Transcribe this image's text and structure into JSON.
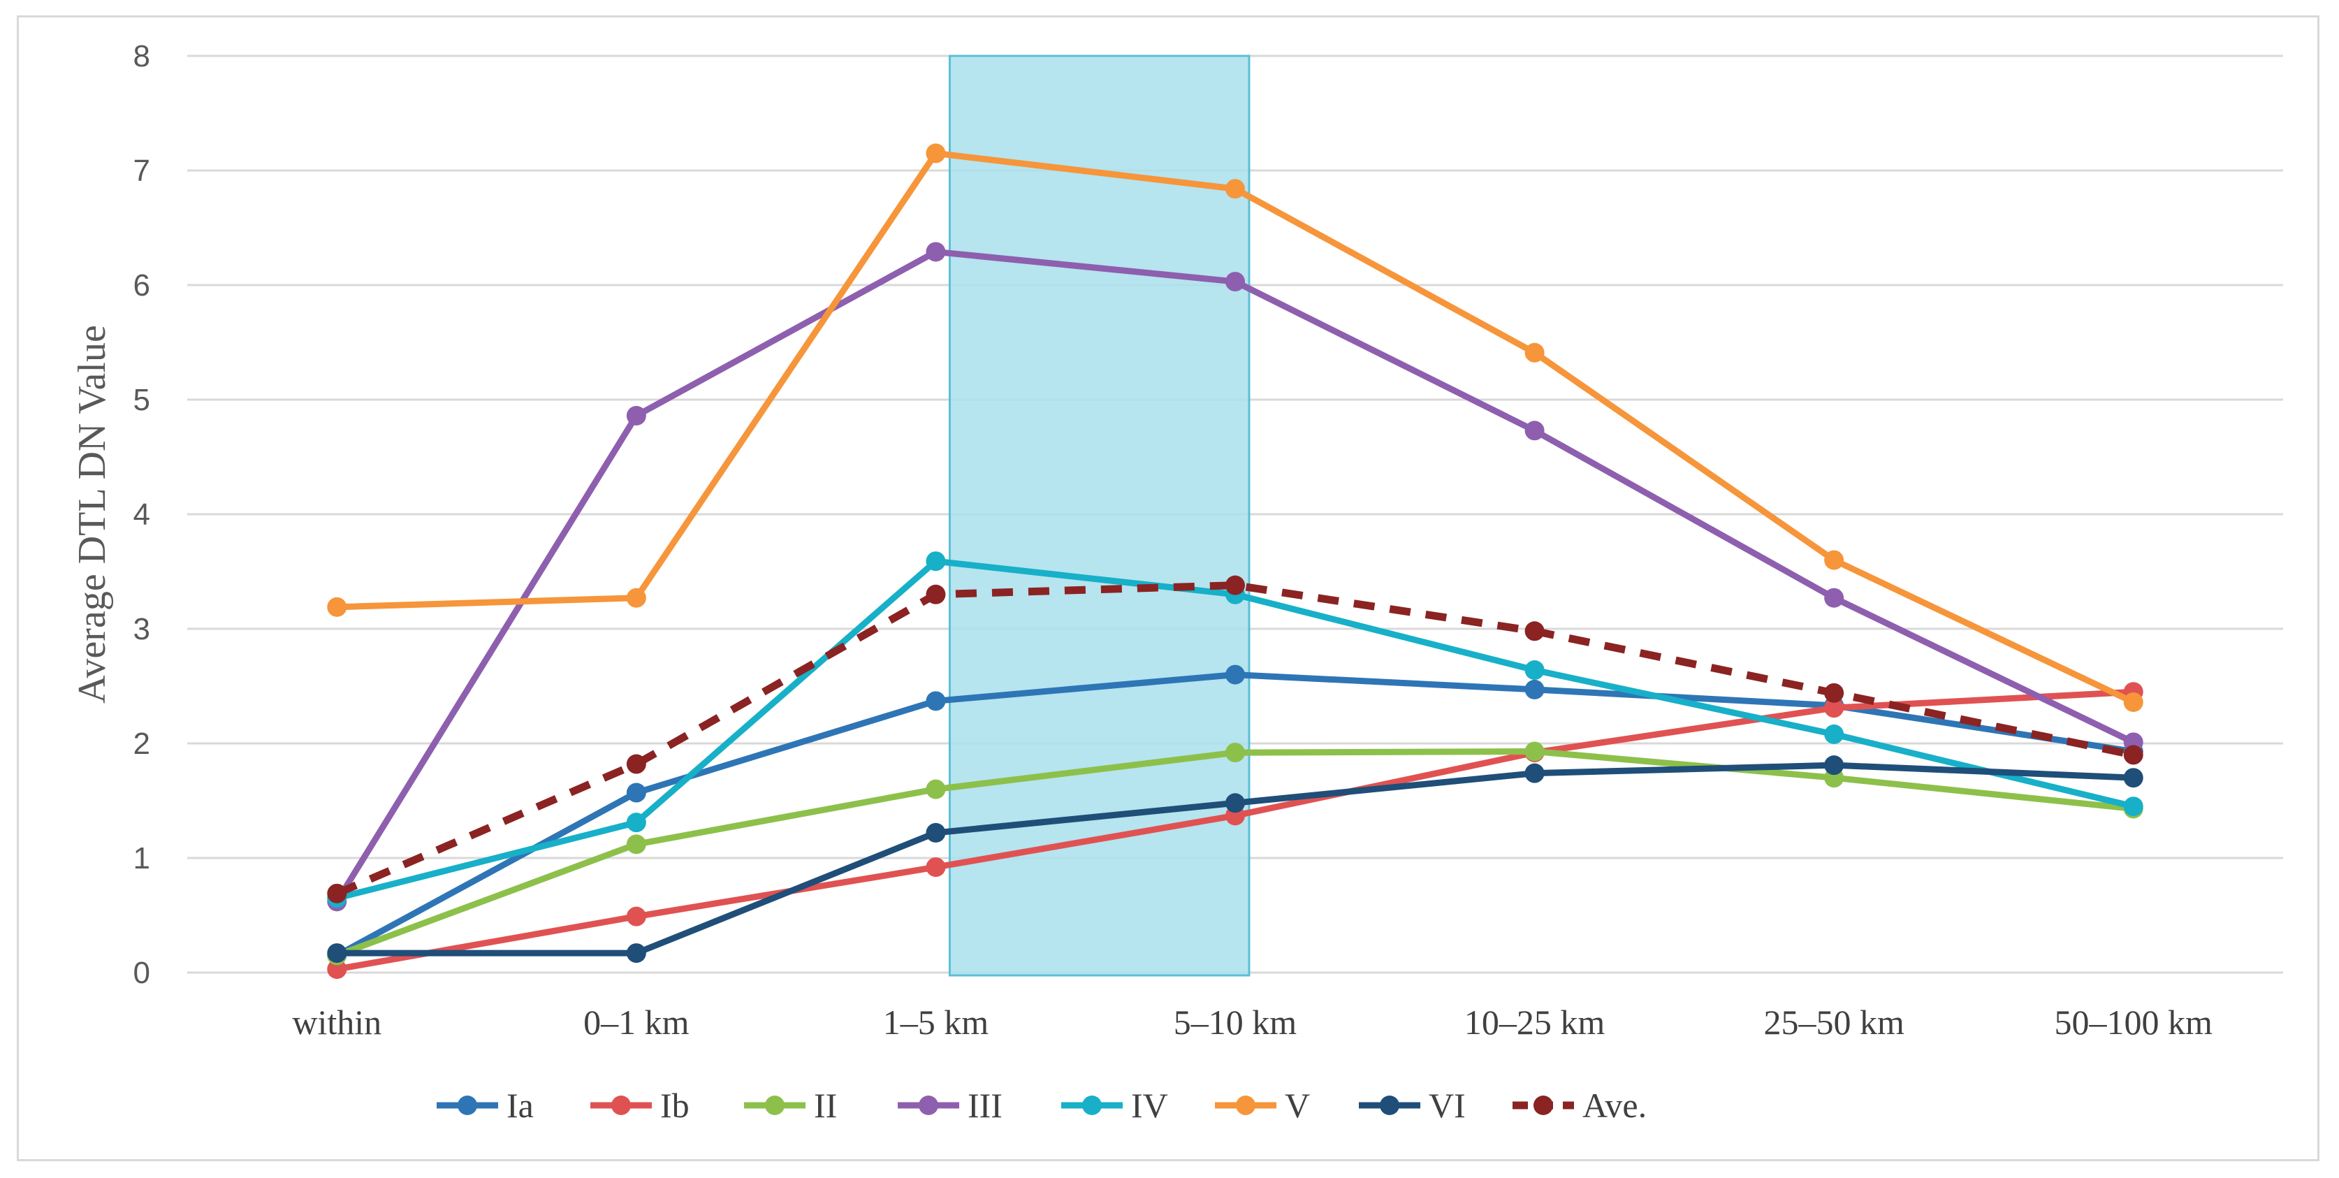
{
  "chart_data": {
    "type": "line",
    "title": "",
    "xlabel": "",
    "ylabel": "Average DTL DN Value",
    "ylim": [
      0,
      8
    ],
    "yticks": [
      0,
      1,
      2,
      3,
      4,
      5,
      6,
      7,
      8
    ],
    "grid": true,
    "legend_position": "bottom",
    "categories": [
      "within",
      "0–1 km",
      "1–5 km",
      "5–10 km",
      "10–25 km",
      "25–50 km",
      "50–100 km"
    ],
    "highlight": {
      "from": "1–5 km",
      "to": "5–10 km",
      "color": "#a9dfec"
    },
    "series": [
      {
        "name": "Ia",
        "color": "#2e75b6",
        "dashed": false,
        "values": [
          0.15,
          1.57,
          2.37,
          2.6,
          2.47,
          2.33,
          1.93
        ]
      },
      {
        "name": "Ib",
        "color": "#e05252",
        "dashed": false,
        "values": [
          0.03,
          0.49,
          0.92,
          1.37,
          1.92,
          2.31,
          2.45
        ]
      },
      {
        "name": "II",
        "color": "#8dc04a",
        "dashed": false,
        "values": [
          0.15,
          1.12,
          1.6,
          1.92,
          1.93,
          1.7,
          1.43
        ]
      },
      {
        "name": "III",
        "color": "#8e5fae",
        "dashed": false,
        "values": [
          0.62,
          4.86,
          6.29,
          6.03,
          4.73,
          3.27,
          2.01
        ]
      },
      {
        "name": "IV",
        "color": "#17b0c8",
        "dashed": false,
        "values": [
          0.65,
          1.31,
          3.59,
          3.3,
          2.64,
          2.08,
          1.45
        ]
      },
      {
        "name": "V",
        "color": "#f6953a",
        "dashed": false,
        "values": [
          3.19,
          3.27,
          7.15,
          6.84,
          5.41,
          3.6,
          2.36
        ]
      },
      {
        "name": "VI",
        "color": "#1f4e79",
        "dashed": false,
        "values": [
          0.17,
          0.17,
          1.22,
          1.48,
          1.74,
          1.81,
          1.7
        ]
      },
      {
        "name": "Ave.",
        "color": "#8b2323",
        "dashed": true,
        "values": [
          0.69,
          1.82,
          3.3,
          3.38,
          2.98,
          2.44,
          1.9
        ]
      }
    ]
  }
}
